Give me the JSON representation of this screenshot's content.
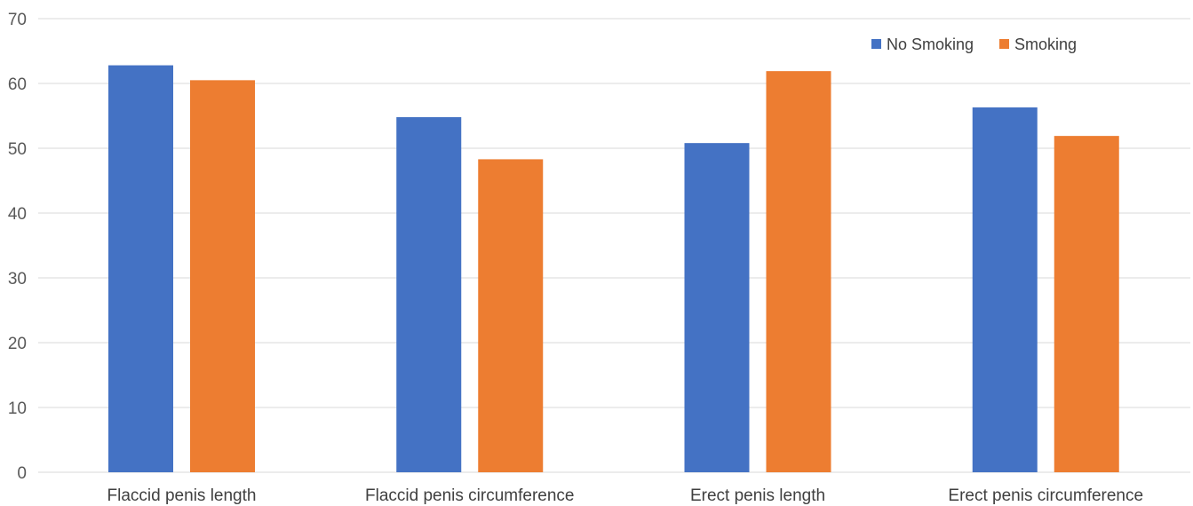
{
  "chart_data": {
    "type": "bar",
    "title": "",
    "xlabel": "",
    "ylabel": "",
    "categories": [
      "Flaccid penis length",
      "Flaccid penis circumference",
      "Erect penis length",
      "Erect penis circumference"
    ],
    "series": [
      {
        "name": "No Smoking",
        "color": "#4472c4",
        "values": [
          62.8,
          54.8,
          50.8,
          56.3
        ]
      },
      {
        "name": "Smoking",
        "color": "#ed7d31",
        "values": [
          60.5,
          48.3,
          61.9,
          51.9
        ]
      }
    ],
    "ylim": [
      0,
      70
    ],
    "yticks": [
      0,
      10,
      20,
      30,
      40,
      50,
      60,
      70
    ],
    "grid": true,
    "legend_position": "top-right"
  }
}
